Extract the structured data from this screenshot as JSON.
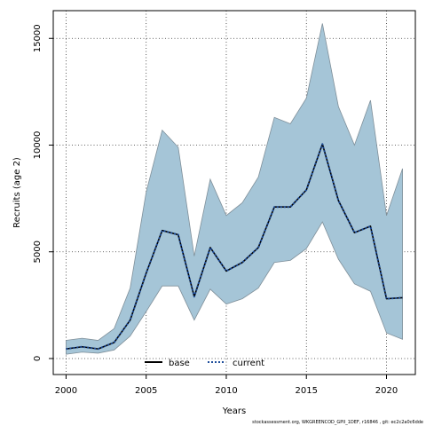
{
  "chart_data": {
    "type": "line",
    "title": "",
    "xlabel": "Years",
    "ylabel": "Recruits (age 2)",
    "xlim": [
      1999.2,
      2021.8
    ],
    "ylim": [
      -750,
      16300
    ],
    "x_ticks": [
      2000,
      2005,
      2010,
      2015,
      2020
    ],
    "y_ticks": [
      0,
      5000,
      10000,
      15000
    ],
    "grid": true,
    "legend_position": "bottom-center",
    "x": [
      2000,
      2001,
      2002,
      2003,
      2004,
      2005,
      2006,
      2007,
      2008,
      2009,
      2010,
      2011,
      2012,
      2013,
      2014,
      2015,
      2016,
      2017,
      2018,
      2019,
      2020,
      2021
    ],
    "band": {
      "color": "#a5c5d7",
      "edge_color": "#7f8f99",
      "upper": [
        850,
        950,
        850,
        1400,
        3300,
        7800,
        10700,
        9900,
        4800,
        8400,
        6700,
        7300,
        8500,
        11300,
        11000,
        12200,
        15700,
        11800,
        10000,
        12100,
        6700,
        8900
      ],
      "lower": [
        200,
        300,
        250,
        400,
        1050,
        2200,
        3400,
        3400,
        1800,
        3250,
        2550,
        2800,
        3300,
        4500,
        4600,
        5150,
        6400,
        4650,
        3500,
        3150,
        1200,
        900
      ]
    },
    "series": [
      {
        "name": "base",
        "color": "#000000",
        "dash": "solid",
        "values": [
          450,
          550,
          450,
          750,
          1800,
          4000,
          6000,
          5800,
          2900,
          5200,
          4100,
          4500,
          5200,
          7100,
          7100,
          7900,
          10050,
          7400,
          5900,
          6200,
          2800,
          2850
        ]
      },
      {
        "name": "current",
        "color": "#1f4e9b",
        "dash": "dotted",
        "values": [
          450,
          550,
          450,
          750,
          1800,
          4000,
          6000,
          5800,
          2900,
          5200,
          4100,
          4500,
          5200,
          7100,
          7100,
          7900,
          10050,
          7400,
          5900,
          6200,
          2800,
          2850
        ]
      }
    ]
  },
  "footer_text": "stockassessment.org, WKGREENCOD_GPII_1DEF, r16846 , git: ec2c2a0c6dde"
}
